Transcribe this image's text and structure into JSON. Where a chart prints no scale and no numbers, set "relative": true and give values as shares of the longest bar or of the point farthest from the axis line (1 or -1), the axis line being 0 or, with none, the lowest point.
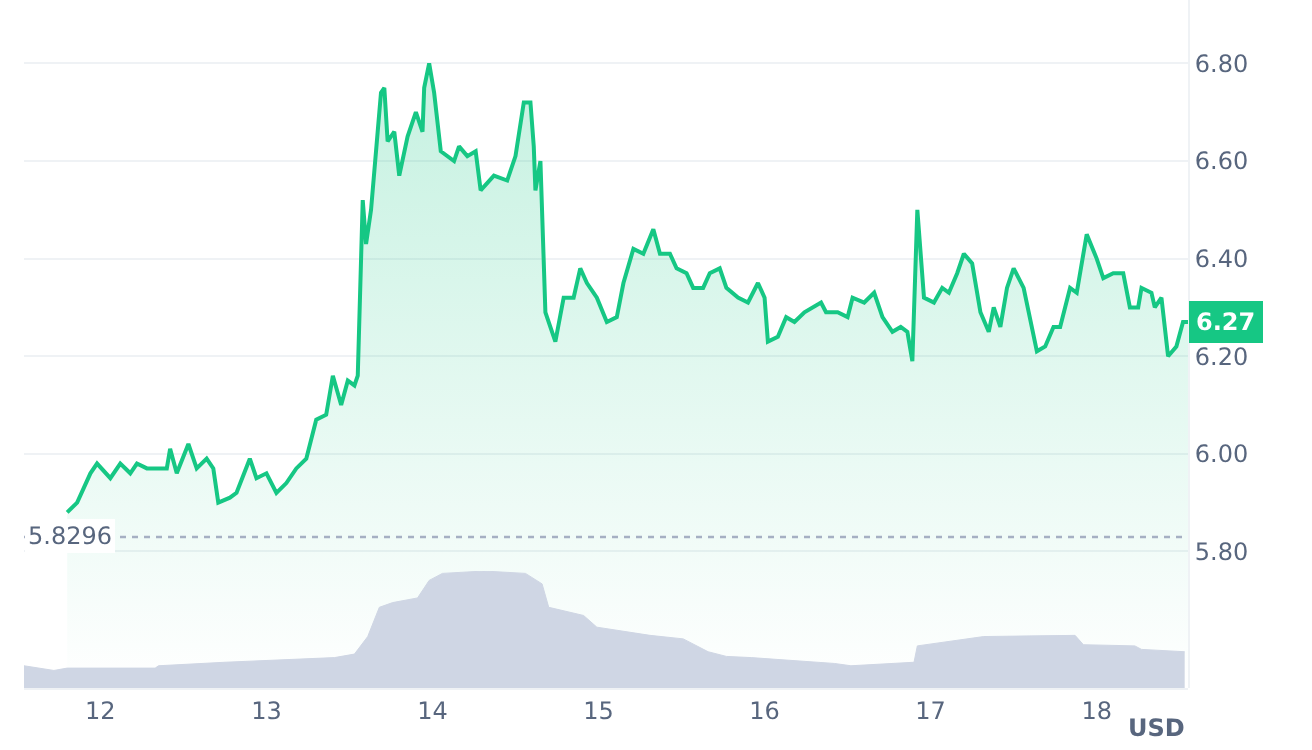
{
  "chart_data": [
    {
      "type": "area",
      "color": "#16c784",
      "x": [
        11.8,
        11.86,
        11.94,
        11.98,
        12.06,
        12.12,
        12.18,
        12.22,
        12.28,
        12.4,
        12.42,
        12.46,
        12.53,
        12.58,
        12.64,
        12.68,
        12.71,
        12.78,
        12.82,
        12.9,
        12.94,
        13.0,
        13.06,
        13.12,
        13.18,
        13.24,
        13.3,
        13.36,
        13.4,
        13.45,
        13.49,
        13.53,
        13.55,
        13.58,
        13.6,
        13.63,
        13.67,
        13.69,
        13.71,
        13.73,
        13.77,
        13.8,
        13.85,
        13.9,
        13.94,
        13.95,
        13.98,
        14.01,
        14.05,
        14.13,
        14.16,
        14.21,
        14.26,
        14.29,
        14.37,
        14.45,
        14.5,
        14.55,
        14.59,
        14.61,
        14.62,
        14.65,
        14.68,
        14.74,
        14.79,
        14.85,
        14.89,
        14.93,
        14.99,
        15.05,
        15.11,
        15.15,
        15.21,
        15.27,
        15.33,
        15.37,
        15.43,
        15.47,
        15.53,
        15.57,
        15.63,
        15.67,
        15.73,
        15.77,
        15.84,
        15.9,
        15.96,
        16.0,
        16.02,
        16.08,
        16.13,
        16.18,
        16.24,
        16.34,
        16.37,
        16.44,
        16.5,
        16.53,
        16.6,
        16.66,
        16.71,
        16.77,
        16.82,
        16.86,
        16.89,
        16.92,
        16.96,
        17.02,
        17.07,
        17.11,
        17.16,
        17.2,
        17.25,
        17.3,
        17.35,
        17.38,
        17.42,
        17.46,
        17.5,
        17.56,
        17.64,
        17.69,
        17.74,
        17.78,
        17.84,
        17.88,
        17.94,
        18.0,
        18.04,
        18.1,
        18.16,
        18.2,
        18.25,
        18.27,
        18.33,
        18.35,
        18.39,
        18.43,
        18.48,
        18.52,
        18.55
      ],
      "values": [
        5.88,
        5.9,
        5.96,
        5.98,
        5.95,
        5.98,
        5.96,
        5.98,
        5.97,
        5.97,
        6.01,
        5.96,
        6.02,
        5.97,
        5.99,
        5.97,
        5.9,
        5.91,
        5.92,
        5.99,
        5.95,
        5.96,
        5.92,
        5.94,
        5.97,
        5.99,
        6.07,
        6.08,
        6.16,
        6.1,
        6.15,
        6.14,
        6.16,
        6.52,
        6.43,
        6.5,
        6.66,
        6.74,
        6.75,
        6.64,
        6.66,
        6.57,
        6.65,
        6.7,
        6.66,
        6.75,
        6.8,
        6.74,
        6.62,
        6.6,
        6.63,
        6.61,
        6.62,
        6.54,
        6.57,
        6.56,
        6.61,
        6.72,
        6.72,
        6.63,
        6.54,
        6.6,
        6.29,
        6.23,
        6.32,
        6.32,
        6.38,
        6.35,
        6.32,
        6.27,
        6.28,
        6.35,
        6.42,
        6.41,
        6.46,
        6.41,
        6.41,
        6.38,
        6.37,
        6.34,
        6.34,
        6.37,
        6.38,
        6.34,
        6.32,
        6.31,
        6.35,
        6.32,
        6.23,
        6.24,
        6.28,
        6.27,
        6.29,
        6.31,
        6.29,
        6.29,
        6.28,
        6.32,
        6.31,
        6.33,
        6.28,
        6.25,
        6.26,
        6.25,
        6.19,
        6.5,
        6.32,
        6.31,
        6.34,
        6.33,
        6.37,
        6.41,
        6.39,
        6.29,
        6.25,
        6.3,
        6.26,
        6.34,
        6.38,
        6.34,
        6.21,
        6.22,
        6.26,
        6.26,
        6.34,
        6.33,
        6.45,
        6.4,
        6.36,
        6.37,
        6.37,
        6.3,
        6.3,
        6.34,
        6.33,
        6.3,
        6.32,
        6.2,
        6.22,
        6.27,
        6.27
      ],
      "xlim": [
        11.54,
        18.55
      ],
      "tick_labels": "y",
      "ylim": [
        5.52,
        6.93
      ],
      "yticks": [
        {
          "value": 5.8,
          "label": "5.80"
        },
        {
          "value": 6.0,
          "label": "6.00"
        },
        {
          "value": 6.2,
          "label": "6.20"
        },
        {
          "value": 6.4,
          "label": "6.40"
        },
        {
          "value": 6.6,
          "label": "6.60"
        },
        {
          "value": 6.8,
          "label": "6.80"
        }
      ],
      "grid": "y",
      "marker": "none",
      "ref_lines": [
        {
          "axis": "y",
          "value": 5.8296,
          "label": "5.8296",
          "color": "#a6b0c3",
          "line_style": "dotted"
        }
      ],
      "annotations": [
        {
          "text": "6.27",
          "x": 18.55,
          "y": 6.27
        },
        "USD"
      ]
    },
    {
      "type": "area",
      "relative": true,
      "color": "#cfd6e4",
      "tick_labels": "x",
      "xlim": [
        11.54,
        18.55
      ],
      "xticks": [
        12,
        13,
        14,
        15,
        16,
        17,
        18
      ],
      "x": [
        11.54,
        11.72,
        11.8,
        12.33,
        12.35,
        12.75,
        13.41,
        13.53,
        13.61,
        13.68,
        13.76,
        13.91,
        13.98,
        14.06,
        14.31,
        14.56,
        14.66,
        14.7,
        14.91,
        14.99,
        15.31,
        15.51,
        15.66,
        15.77,
        15.92,
        16.42,
        16.52,
        16.9,
        16.92,
        17.32,
        17.87,
        17.92,
        18.23,
        18.27,
        18.53
      ],
      "values": [
        0.19,
        0.15,
        0.17,
        0.17,
        0.19,
        0.22,
        0.26,
        0.29,
        0.44,
        0.69,
        0.73,
        0.77,
        0.92,
        0.98,
        1.0,
        0.98,
        0.89,
        0.69,
        0.62,
        0.52,
        0.45,
        0.42,
        0.31,
        0.27,
        0.26,
        0.21,
        0.19,
        0.22,
        0.36,
        0.44,
        0.45,
        0.37,
        0.36,
        0.33,
        0.31
      ]
    }
  ]
}
